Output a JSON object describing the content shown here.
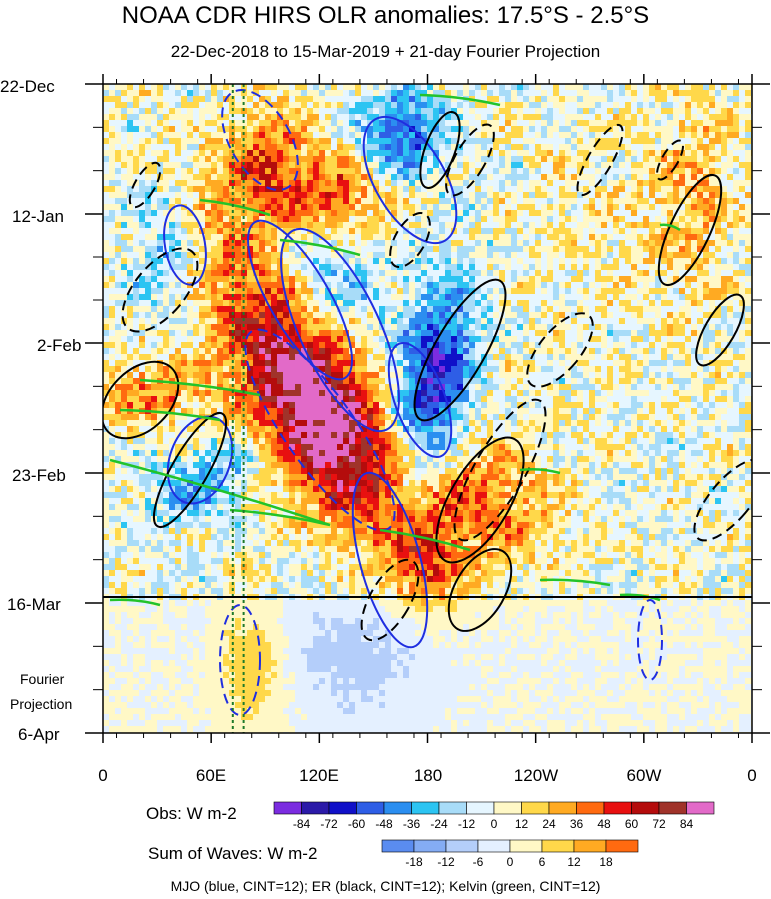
{
  "title": "NOAA CDR HIRS OLR anomalies: 17.5°S - 2.5°S",
  "subtitle": "22-Dec-2018 to 15-Mar-2019 + 21-day Fourier Projection",
  "projection_label_line1": "Fourier",
  "projection_label_line2": "Projection",
  "footer": "MJO (blue, CINT=12); ER (black, CINT=12); Kelvin (green, CINT=12)",
  "legend_obs": {
    "label": "Obs: W m-2",
    "ticks": [
      "-84",
      "-72",
      "-60",
      "-48",
      "-36",
      "-24",
      "-12",
      "0",
      "12",
      "24",
      "36",
      "48",
      "60",
      "72",
      "84"
    ],
    "colors": [
      "#7b2ce0",
      "#2b1aa8",
      "#1010c8",
      "#2e5ee6",
      "#2b8ef0",
      "#2cc4f2",
      "#a8dcf8",
      "#e6f6ff",
      "#fff8c6",
      "#ffd84a",
      "#ffaa22",
      "#ff6a10",
      "#e81010",
      "#b40c0c",
      "#a0332a",
      "#e26ac8"
    ]
  },
  "legend_sum": {
    "label": "Sum of Waves: W m-2",
    "ticks": [
      "-18",
      "-12",
      "-6",
      "0",
      "6",
      "12",
      "18"
    ],
    "colors": [
      "#5a8cf0",
      "#84acf4",
      "#b4cefa",
      "#e4f0ff",
      "#fff8c6",
      "#ffd84a",
      "#ffaa22",
      "#ff6a10"
    ]
  },
  "chart_data": {
    "type": "heatmap",
    "title": "NOAA CDR HIRS OLR anomalies: 17.5°S - 2.5°S",
    "subtitle": "22-Dec-2018 to 15-Mar-2019 + 21-day Fourier Projection",
    "x_axis": {
      "ticks": [
        "0",
        "60E",
        "120E",
        "180",
        "120W",
        "60W",
        "0"
      ],
      "tick_values": [
        0,
        60,
        120,
        180,
        240,
        300,
        360
      ],
      "range": [
        0,
        360
      ]
    },
    "y_axis": {
      "ticks": [
        "22-Dec",
        "12-Jan",
        "2-Feb",
        "23-Feb",
        "16-Mar",
        "6-Apr"
      ],
      "range": [
        "22-Dec-2018",
        "6-Apr-2019"
      ],
      "direction": "time increases downward"
    },
    "observation_end": "16-Mar",
    "projection_period": "16-Mar to 6-Apr",
    "vertical_lines_lon": [
      72,
      78
    ],
    "overlays": [
      {
        "name": "MJO",
        "color": "blue",
        "cint": 12
      },
      {
        "name": "ER",
        "color": "black",
        "cint": 12
      },
      {
        "name": "Kelvin",
        "color": "green",
        "cint": 12
      }
    ]
  }
}
